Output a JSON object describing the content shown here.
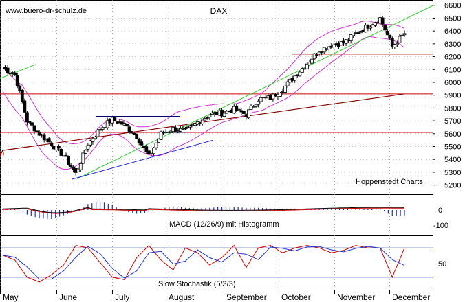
{
  "watermark": "www.buero-dr-schulz.de",
  "credit": "Hoppenstedt Charts",
  "chart_data": {
    "type": "candlestick",
    "title": "DAX",
    "months": [
      "May",
      "June",
      "July",
      "August",
      "September",
      "October",
      "November",
      "December"
    ],
    "price_axis": {
      "ticks": [
        "6600",
        "6500",
        "6400",
        "6300",
        "6200",
        "6100",
        "6000",
        "5900",
        "5800",
        "5700",
        "5600",
        "5500",
        "5400",
        "5300",
        "5200"
      ],
      "ylim": [
        5150,
        6620
      ],
      "horizontal_levels": [
        5910,
        5610,
        6220
      ],
      "left_cut_label": "0"
    },
    "price_weekly_closes": [
      6110,
      6060,
      5700,
      5600,
      5520,
      5430,
      5290,
      5520,
      5640,
      5710,
      5670,
      5580,
      5420,
      5600,
      5640,
      5620,
      5690,
      5750,
      5760,
      5790,
      5750,
      5870,
      5880,
      5950,
      6050,
      6150,
      6250,
      6290,
      6310,
      6380,
      6440,
      6500,
      6280,
      6380
    ],
    "macd_panel": {
      "label": "MACD (12/26/9) mit Histogramm",
      "ticks": [
        "0",
        "-100"
      ],
      "histogram_weekly": [
        5,
        10,
        -30,
        -55,
        -60,
        -35,
        -10,
        40,
        55,
        35,
        -10,
        -25,
        -15,
        10,
        25,
        15,
        10,
        15,
        20,
        20,
        15,
        15,
        10,
        10,
        10,
        5,
        10,
        10,
        5,
        5,
        5,
        5,
        -40,
        -35
      ]
    },
    "stochastic_panel": {
      "label": "Slow Stochastik (5/3/3)",
      "ticks": [
        "50"
      ],
      "levels": [
        80,
        20
      ],
      "k_weekly": [
        65,
        55,
        20,
        10,
        25,
        45,
        85,
        80,
        50,
        20,
        15,
        60,
        85,
        55,
        35,
        80,
        70,
        45,
        60,
        85,
        40,
        80,
        85,
        70,
        80,
        85,
        80,
        70,
        75,
        85,
        80,
        80,
        20,
        80
      ]
    }
  }
}
